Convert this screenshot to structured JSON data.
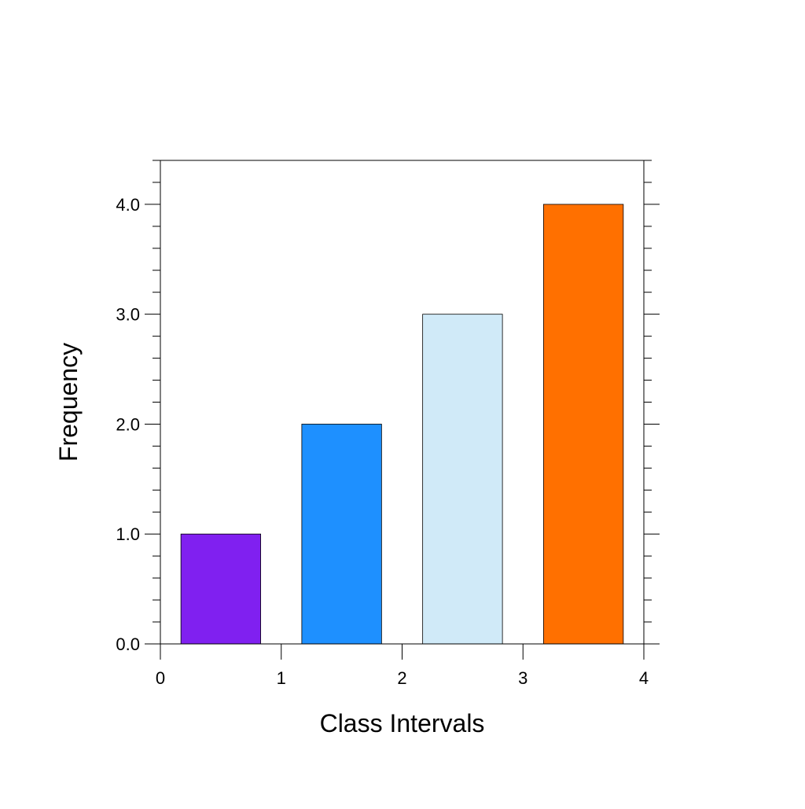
{
  "chart_data": {
    "type": "bar",
    "title": "",
    "xlabel": "Class Intervals",
    "ylabel": "Frequency",
    "bars": [
      {
        "x_start": 0.17,
        "x_end": 0.83,
        "value": 1.0,
        "color": "#8020f0"
      },
      {
        "x_start": 1.17,
        "x_end": 1.83,
        "value": 2.0,
        "color": "#1e90ff"
      },
      {
        "x_start": 2.17,
        "x_end": 2.83,
        "value": 3.0,
        "color": "#d0eaf8"
      },
      {
        "x_start": 3.17,
        "x_end": 3.83,
        "value": 4.0,
        "color": "#ff7000"
      }
    ],
    "xlim": [
      0,
      4
    ],
    "ylim": [
      0,
      4.4
    ],
    "x_ticks": [
      0,
      1,
      2,
      3,
      4
    ],
    "x_tick_labels": [
      "0",
      "1",
      "2",
      "3",
      "4"
    ],
    "y_ticks": [
      0,
      1,
      2,
      3,
      4
    ],
    "y_tick_labels": [
      "0.0",
      "1.0",
      "2.0",
      "3.0",
      "4.0"
    ],
    "y_minor_step": 0.2,
    "grid": false,
    "legend": "none"
  }
}
